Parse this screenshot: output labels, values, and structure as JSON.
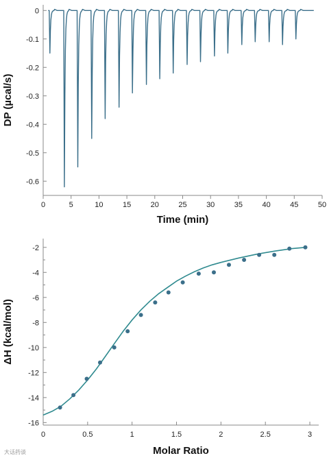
{
  "chart_data": [
    {
      "type": "line",
      "xlabel": "Time (min)",
      "ylabel": "DP (µcal/s)",
      "xlim": [
        0,
        50
      ],
      "ylim": [
        -0.65,
        0.02
      ],
      "xticks": [
        0,
        5,
        10,
        15,
        20,
        25,
        30,
        35,
        40,
        45,
        50
      ],
      "yticks": [
        0,
        -0.1,
        -0.2,
        -0.3,
        -0.4,
        -0.5,
        -0.6
      ],
      "ytick_labels": [
        "0",
        "-0.1",
        "-0.2",
        "-0.3",
        "-0.4",
        "-0.5",
        "-0.6"
      ],
      "baseline": 0,
      "series": [
        {
          "color": "#3b6f8a",
          "injections": [
            {
              "time": 1.2,
              "peak": -0.15
            },
            {
              "time": 3.8,
              "peak": -0.62
            },
            {
              "time": 6.2,
              "peak": -0.55
            },
            {
              "time": 8.7,
              "peak": -0.45
            },
            {
              "time": 11.1,
              "peak": -0.38
            },
            {
              "time": 13.6,
              "peak": -0.34
            },
            {
              "time": 16.0,
              "peak": -0.29
            },
            {
              "time": 18.5,
              "peak": -0.26
            },
            {
              "time": 20.9,
              "peak": -0.24
            },
            {
              "time": 23.3,
              "peak": -0.22
            },
            {
              "time": 25.8,
              "peak": -0.19
            },
            {
              "time": 28.2,
              "peak": -0.18
            },
            {
              "time": 30.7,
              "peak": -0.16
            },
            {
              "time": 33.1,
              "peak": -0.15
            },
            {
              "time": 35.6,
              "peak": -0.12
            },
            {
              "time": 38.0,
              "peak": -0.11
            },
            {
              "time": 40.5,
              "peak": -0.11
            },
            {
              "time": 42.9,
              "peak": -0.12
            },
            {
              "time": 45.3,
              "peak": -0.1
            }
          ]
        }
      ]
    },
    {
      "type": "scatter",
      "xlabel": "Molar Ratio",
      "ylabel": "ΔH (kcal/mol)",
      "xlim": [
        0,
        3.1
      ],
      "ylim": [
        -16.2,
        -1.3
      ],
      "xticks": [
        0,
        0.5,
        1,
        1.5,
        2,
        2.5,
        3
      ],
      "xtick_labels": [
        "0",
        "0.5",
        "1",
        "1.5",
        "2",
        "2.5",
        "3"
      ],
      "yticks": [
        -2,
        -4,
        -6,
        -8,
        -10,
        -12,
        -14,
        -16
      ],
      "ytick_labels": [
        "-2",
        "-4",
        "-6",
        "-8",
        "-10",
        "-12",
        "-14",
        "-16"
      ],
      "series": [
        {
          "marker_color": "#3b6f8a",
          "x": [
            0.19,
            0.34,
            0.49,
            0.64,
            0.8,
            0.95,
            1.1,
            1.26,
            1.41,
            1.57,
            1.75,
            1.92,
            2.09,
            2.26,
            2.43,
            2.6,
            2.77,
            2.95
          ],
          "y": [
            -14.8,
            -13.8,
            -12.5,
            -11.2,
            -10.0,
            -8.7,
            -7.4,
            -6.4,
            -5.6,
            -4.8,
            -4.1,
            -4.0,
            -3.4,
            -3.0,
            -2.6,
            -2.6,
            -2.1,
            -2.0
          ]
        },
        {
          "line_color": "#2f8a8f",
          "fit": true,
          "x": [
            0.0,
            0.1,
            0.2,
            0.3,
            0.4,
            0.5,
            0.6,
            0.7,
            0.8,
            0.9,
            1.0,
            1.1,
            1.2,
            1.3,
            1.4,
            1.5,
            1.6,
            1.7,
            1.8,
            1.9,
            2.0,
            2.2,
            2.4,
            2.6,
            2.8,
            2.95
          ],
          "y": [
            -15.4,
            -15.1,
            -14.7,
            -14.1,
            -13.4,
            -12.6,
            -11.7,
            -10.7,
            -9.7,
            -8.7,
            -7.8,
            -7.0,
            -6.3,
            -5.7,
            -5.2,
            -4.7,
            -4.3,
            -3.95,
            -3.65,
            -3.4,
            -3.2,
            -2.85,
            -2.55,
            -2.3,
            -2.1,
            -2.0
          ]
        }
      ]
    }
  ],
  "watermark": "大话药谈"
}
